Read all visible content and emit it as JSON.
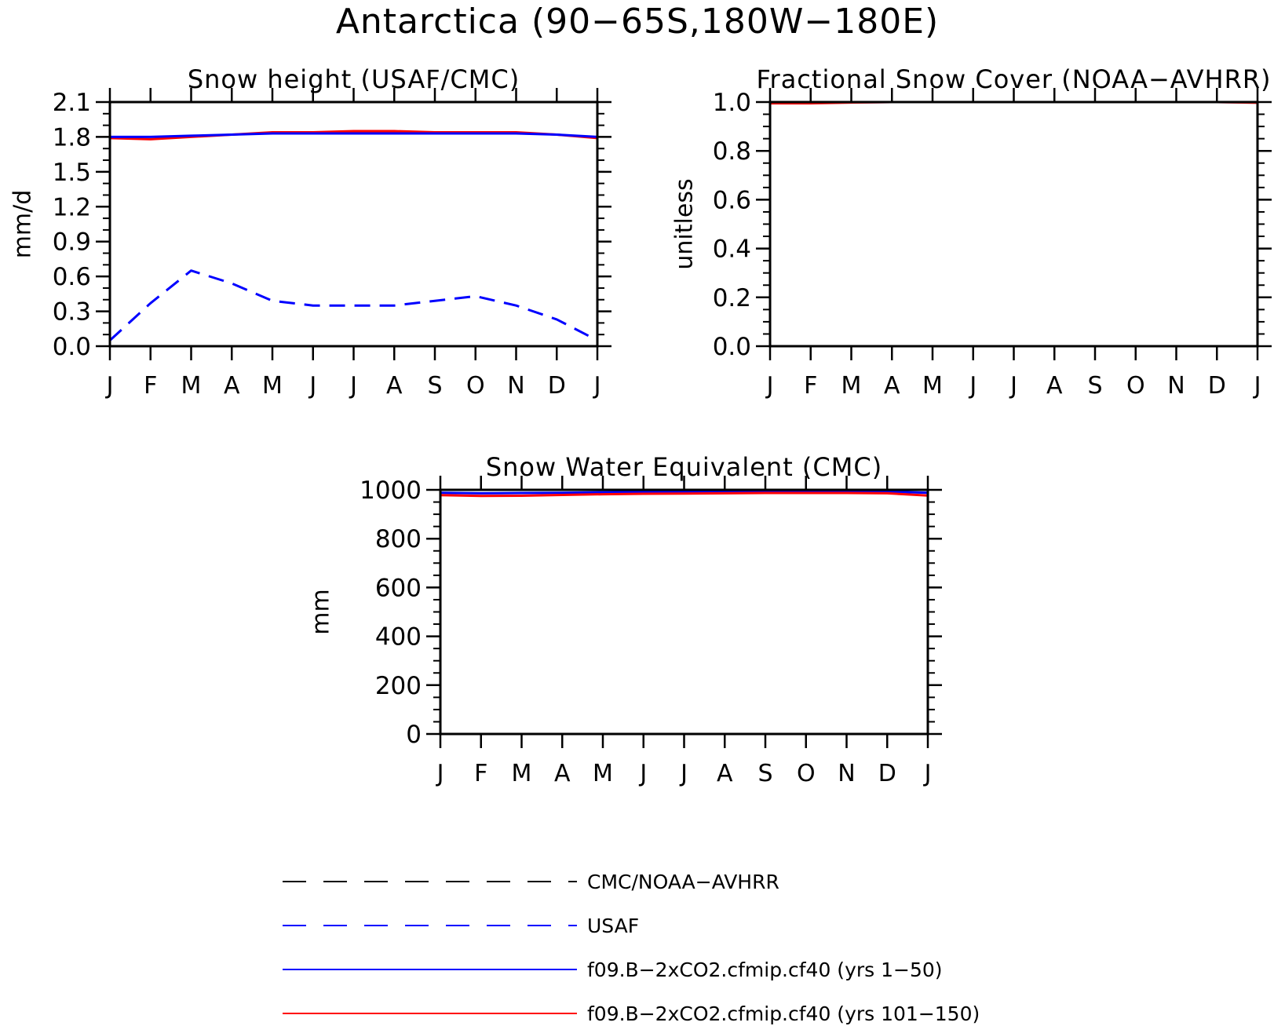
{
  "figure_title": "Antarctica (90−65S,180W−180E)",
  "legend": [
    {
      "label": "CMC/NOAA−AVHRR",
      "color": "#000000",
      "dash": true
    },
    {
      "label": "USAF",
      "color": "#0000ff",
      "dash": true
    },
    {
      "label": "f09.B−2xCO2.cfmip.cf40 (yrs 1−50)",
      "color": "#0000ff",
      "dash": false
    },
    {
      "label": "f09.B−2xCO2.cfmip.cf40 (yrs 101−150)",
      "color": "#ff0000",
      "dash": false
    }
  ],
  "chart_data": [
    {
      "type": "line",
      "title": "Snow height (USAF/CMC)",
      "ylabel": "mm/d",
      "xlabel": "",
      "categories": [
        "J",
        "F",
        "M",
        "A",
        "M",
        "J",
        "J",
        "A",
        "S",
        "O",
        "N",
        "D",
        "J"
      ],
      "ylim": [
        0,
        2.1
      ],
      "yticks": [
        0.0,
        0.3,
        0.6,
        0.9,
        1.2,
        1.5,
        1.8,
        2.1
      ],
      "ytick_labels": [
        "0.0",
        "0.3",
        "0.6",
        "0.9",
        "1.2",
        "1.5",
        "1.8",
        "2.1"
      ],
      "yminor_step": 0.1,
      "grid": false,
      "series": [
        {
          "name": "CMC/NOAA−AVHRR",
          "color": "#000000",
          "dash": true,
          "values": [
            0.0,
            0.0,
            0.0,
            0.0,
            0.0,
            0.0,
            0.0,
            0.0,
            0.0,
            0.0,
            0.0,
            0.0,
            0.0
          ]
        },
        {
          "name": "USAF",
          "color": "#0000ff",
          "dash": true,
          "values": [
            0.05,
            0.37,
            0.65,
            0.54,
            0.39,
            0.35,
            0.35,
            0.35,
            0.39,
            0.43,
            0.35,
            0.23,
            0.05
          ]
        },
        {
          "name": "f09.B−2xCO2.cfmip.cf40 (yrs 101−150)",
          "color": "#ff0000",
          "dash": false,
          "values": [
            1.79,
            1.78,
            1.8,
            1.82,
            1.84,
            1.84,
            1.85,
            1.85,
            1.84,
            1.84,
            1.84,
            1.82,
            1.79
          ]
        },
        {
          "name": "f09.B−2xCO2.cfmip.cf40 (yrs 1−50)",
          "color": "#0000ff",
          "dash": false,
          "values": [
            1.8,
            1.8,
            1.81,
            1.82,
            1.83,
            1.83,
            1.83,
            1.83,
            1.83,
            1.83,
            1.83,
            1.82,
            1.8
          ]
        }
      ]
    },
    {
      "type": "line",
      "title": "Fractional Snow Cover (NOAA−AVHRR)",
      "ylabel": "unitless",
      "xlabel": "",
      "categories": [
        "J",
        "F",
        "M",
        "A",
        "M",
        "J",
        "J",
        "A",
        "S",
        "O",
        "N",
        "D",
        "J"
      ],
      "ylim": [
        0,
        1.0
      ],
      "yticks": [
        0.0,
        0.2,
        0.4,
        0.6,
        0.8,
        1.0
      ],
      "ytick_labels": [
        "0.0",
        "0.2",
        "0.4",
        "0.6",
        "0.8",
        "1.0"
      ],
      "yminor_step": 0.05,
      "grid": false,
      "series": [
        {
          "name": "CMC/NOAA−AVHRR",
          "color": "#000000",
          "dash": true,
          "values": [
            0.0,
            0.0,
            0.0,
            0.0,
            0.0,
            0.0,
            0.0,
            0.0,
            0.0,
            0.0,
            0.0,
            0.0,
            0.0
          ]
        },
        {
          "name": "f09.B−2xCO2.cfmip.cf40 (yrs 1−50)",
          "color": "#0000ff",
          "dash": false,
          "values": [
            0.997,
            0.997,
            0.999,
            1.0,
            1.0,
            1.0,
            1.0,
            1.0,
            1.0,
            1.0,
            1.0,
            1.0,
            0.999
          ]
        },
        {
          "name": "f09.B−2xCO2.cfmip.cf40 (yrs 101−150)",
          "color": "#ff0000",
          "dash": false,
          "values": [
            0.995,
            0.995,
            0.998,
            1.0,
            1.0,
            1.0,
            1.0,
            1.0,
            1.0,
            1.0,
            1.0,
            1.0,
            0.997
          ]
        }
      ]
    },
    {
      "type": "line",
      "title": "Snow Water Equivalent (CMC)",
      "ylabel": "mm",
      "xlabel": "",
      "categories": [
        "J",
        "F",
        "M",
        "A",
        "M",
        "J",
        "J",
        "A",
        "S",
        "O",
        "N",
        "D",
        "J"
      ],
      "ylim": [
        0,
        1000
      ],
      "yticks": [
        0,
        200,
        400,
        600,
        800,
        1000
      ],
      "ytick_labels": [
        "0",
        "200",
        "400",
        "600",
        "800",
        "1000"
      ],
      "yminor_step": 50,
      "grid": false,
      "series": [
        {
          "name": "CMC/NOAA−AVHRR",
          "color": "#000000",
          "dash": true,
          "values": [
            0,
            0,
            0,
            0,
            0,
            0,
            0,
            0,
            0,
            0,
            0,
            0,
            0
          ]
        },
        {
          "name": "f09.B−2xCO2.cfmip.cf40 (yrs 1−50)",
          "color": "#0000ff",
          "dash": false,
          "values": [
            988,
            986,
            987,
            988,
            990,
            991,
            992,
            993,
            994,
            994,
            994,
            993,
            988
          ]
        },
        {
          "name": "f09.B−2xCO2.cfmip.cf40 (yrs 101−150)",
          "color": "#ff0000",
          "dash": false,
          "values": [
            978,
            975,
            976,
            979,
            982,
            984,
            985,
            986,
            987,
            987,
            987,
            986,
            977
          ]
        }
      ]
    }
  ]
}
